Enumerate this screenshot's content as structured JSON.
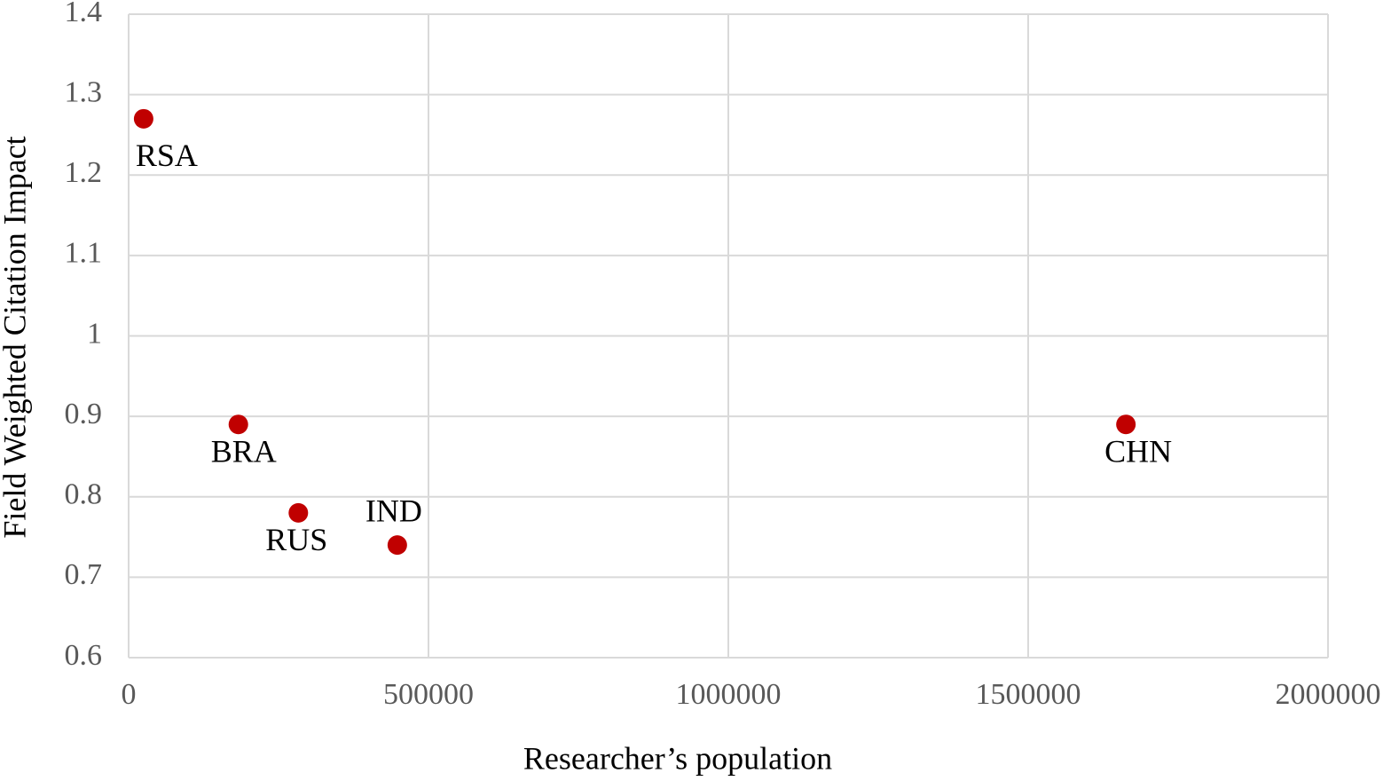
{
  "chart_data": {
    "type": "scatter",
    "xlabel": "Researcher’s population",
    "ylabel": "Field Weighted Citation Impact",
    "labels": [
      "RSA",
      "BRA",
      "RUS",
      "IND",
      "CHN"
    ],
    "x": [
      25000,
      183000,
      283000,
      448000,
      1663000
    ],
    "values": [
      1.27,
      0.89,
      0.78,
      0.74,
      0.89
    ],
    "color": "#c00000",
    "xlim": [
      0,
      2000000
    ],
    "xticks": [
      0,
      500000,
      1000000,
      1500000,
      2000000
    ],
    "ylim": [
      0.6,
      1.4
    ],
    "yticks": [
      0.6,
      0.7,
      0.8,
      0.9,
      1,
      1.1,
      1.2,
      1.3,
      1.4
    ],
    "grid": true
  }
}
